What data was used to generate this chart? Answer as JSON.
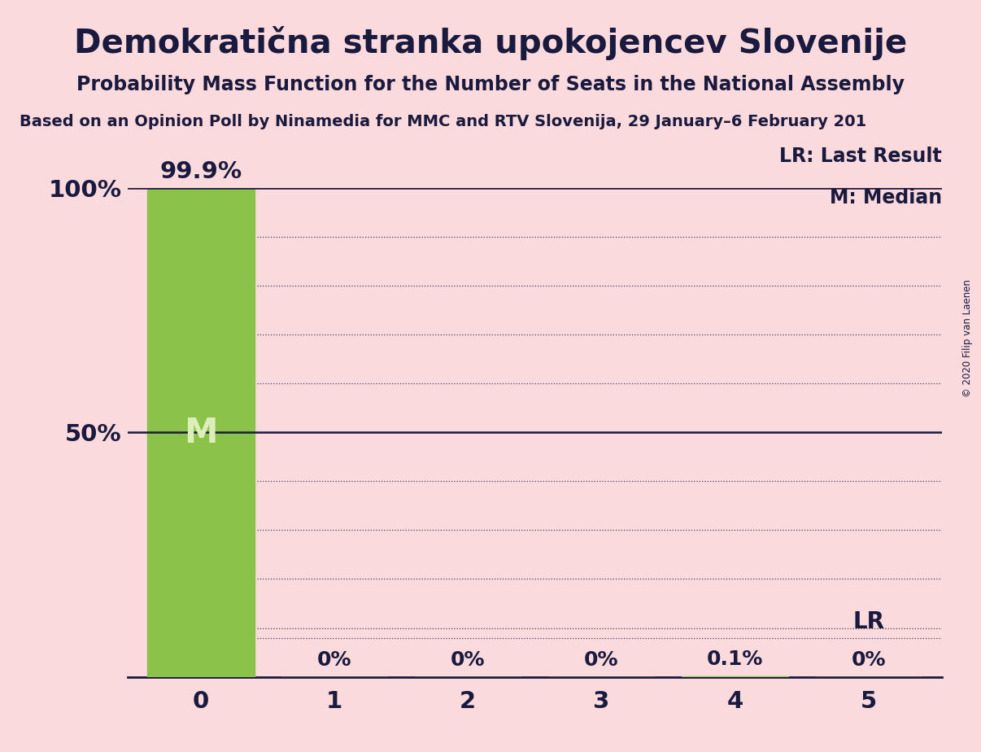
{
  "title": "Demokratična stranka upokojencev Slovenije",
  "subtitle": "Probability Mass Function for the Number of Seats in the National Assembly",
  "source": "Based on an Opinion Poll by Ninamedia for MMC and RTV Slovenija, 29 January–6 February 201",
  "copyright": "© 2020 Filip van Laenen",
  "categories": [
    0,
    1,
    2,
    3,
    4,
    5
  ],
  "values": [
    99.9,
    0.0,
    0.0,
    0.0,
    0.1,
    0.0
  ],
  "bar_color": "#8bc34a",
  "bar_labels": [
    "",
    "0%",
    "0%",
    "0%",
    "0.1%",
    "0%"
  ],
  "median": 0,
  "last_result": 5,
  "background_color": "#fadadd",
  "text_color": "#1a1a3e",
  "ylim": [
    0,
    100
  ],
  "legend_lr": "LR: Last Result",
  "legend_m": "M: Median",
  "median_label": "M",
  "bar_label_99": "99.9%"
}
